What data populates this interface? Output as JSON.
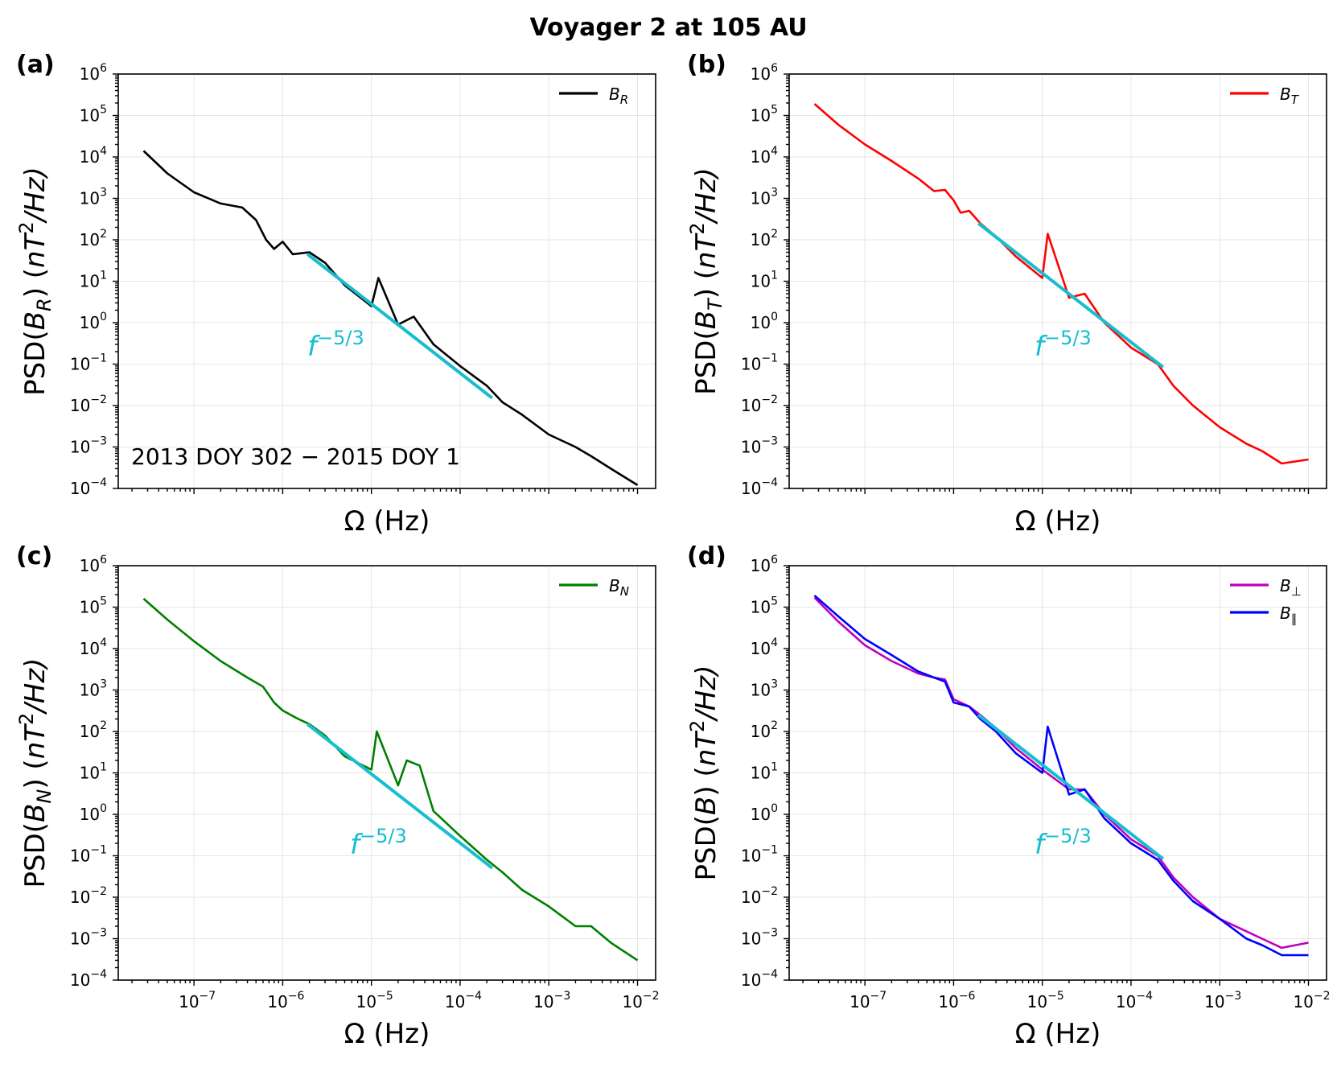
{
  "figure": {
    "title": "Voyager 2 at 105 AU",
    "colors": {
      "fit": "#17becf",
      "B_R": "#000000",
      "B_T": "#ff0000",
      "B_N": "#007f00",
      "B_perp": "#bf00bf",
      "B_par": "#0000ff"
    }
  },
  "chart_data": [
    {
      "type": "line",
      "panel": "(a)",
      "xlabel": "Ω (Hz)",
      "ylabel": "PSD(B_R) (nT²/Hz)",
      "xscale": "log",
      "yscale": "log",
      "xlim": [
        1.4e-08,
        0.016
      ],
      "ylim": [
        0.0001,
        1000000.0
      ],
      "grid": true,
      "legend_position": "top-right",
      "show_x_ticklabels": false,
      "series": [
        {
          "name": "B_R",
          "color": "#000000",
          "points": [
            [
              2.7e-08,
              14000
            ],
            [
              5e-08,
              4000
            ],
            [
              1e-07,
              1400
            ],
            [
              2e-07,
              750
            ],
            [
              3.5e-07,
              600
            ],
            [
              5e-07,
              300
            ],
            [
              6.5e-07,
              100
            ],
            [
              8e-07,
              60
            ],
            [
              1e-06,
              90
            ],
            [
              1.3e-06,
              45
            ],
            [
              2e-06,
              50
            ],
            [
              3e-06,
              28
            ],
            [
              5e-06,
              8
            ],
            [
              1e-05,
              2.5
            ],
            [
              1.2e-05,
              12
            ],
            [
              2e-05,
              0.9
            ],
            [
              3e-05,
              1.4
            ],
            [
              5e-05,
              0.3
            ],
            [
              0.0001,
              0.09
            ],
            [
              0.0002,
              0.03
            ],
            [
              0.0003,
              0.012
            ],
            [
              0.0005,
              0.006
            ],
            [
              0.001,
              0.002
            ],
            [
              0.002,
              0.001
            ],
            [
              0.003,
              0.0006
            ],
            [
              0.005,
              0.0003
            ],
            [
              0.01,
              0.00012
            ]
          ]
        }
      ],
      "fit": {
        "label": "f^{-5/3}",
        "exponent": -1.6667,
        "x_range": [
          1.9e-06,
          0.00023
        ],
        "y_start": 45
      },
      "annotation": "2013 DOY 302 − 2015 DOY 1"
    },
    {
      "type": "line",
      "panel": "(b)",
      "xlabel": "Ω (Hz)",
      "ylabel": "PSD(B_T) (nT²/Hz)",
      "xscale": "log",
      "yscale": "log",
      "xlim": [
        1.4e-08,
        0.016
      ],
      "ylim": [
        0.0001,
        1000000.0
      ],
      "grid": true,
      "legend_position": "top-right",
      "show_x_ticklabels": false,
      "series": [
        {
          "name": "B_T",
          "color": "#ff0000",
          "points": [
            [
              2.7e-08,
              190000
            ],
            [
              5e-08,
              60000
            ],
            [
              1e-07,
              20000
            ],
            [
              2e-07,
              8000
            ],
            [
              4e-07,
              3000
            ],
            [
              6e-07,
              1500
            ],
            [
              8e-07,
              1600
            ],
            [
              1e-06,
              900
            ],
            [
              1.2e-06,
              450
            ],
            [
              1.5e-06,
              500
            ],
            [
              2e-06,
              250
            ],
            [
              3e-06,
              120
            ],
            [
              5e-06,
              40
            ],
            [
              1e-05,
              12
            ],
            [
              1.15e-05,
              140
            ],
            [
              2e-05,
              4
            ],
            [
              3e-05,
              5
            ],
            [
              5e-05,
              1
            ],
            [
              0.0001,
              0.25
            ],
            [
              0.0002,
              0.1
            ],
            [
              0.0003,
              0.03
            ],
            [
              0.0005,
              0.01
            ],
            [
              0.001,
              0.003
            ],
            [
              0.002,
              0.0012
            ],
            [
              0.003,
              0.0008
            ],
            [
              0.005,
              0.0004
            ],
            [
              0.01,
              0.0005
            ]
          ]
        }
      ],
      "fit": {
        "label": "f^{-5/3}",
        "exponent": -1.6667,
        "x_range": [
          1.9e-06,
          0.00023
        ],
        "y_start": 250
      }
    },
    {
      "type": "line",
      "panel": "(c)",
      "xlabel": "Ω (Hz)",
      "ylabel": "PSD(B_N) (nT²/Hz)",
      "xscale": "log",
      "yscale": "log",
      "xlim": [
        1.4e-08,
        0.016
      ],
      "ylim": [
        0.0001,
        1000000.0
      ],
      "grid": true,
      "legend_position": "top-right",
      "show_x_ticklabels": true,
      "series": [
        {
          "name": "B_N",
          "color": "#007f00",
          "points": [
            [
              2.7e-08,
              160000
            ],
            [
              5e-08,
              50000
            ],
            [
              1e-07,
              15000
            ],
            [
              2e-07,
              5000
            ],
            [
              4e-07,
              2000
            ],
            [
              6e-07,
              1200
            ],
            [
              8e-07,
              500
            ],
            [
              1e-06,
              320
            ],
            [
              1.5e-06,
              200
            ],
            [
              2e-06,
              150
            ],
            [
              3e-06,
              80
            ],
            [
              5e-06,
              25
            ],
            [
              1e-05,
              12
            ],
            [
              1.15e-05,
              100
            ],
            [
              2e-05,
              5
            ],
            [
              2.5e-05,
              20
            ],
            [
              3.5e-05,
              15
            ],
            [
              5e-05,
              1.2
            ],
            [
              0.0001,
              0.3
            ],
            [
              0.0002,
              0.08
            ],
            [
              0.0003,
              0.04
            ],
            [
              0.0005,
              0.015
            ],
            [
              0.001,
              0.006
            ],
            [
              0.002,
              0.002
            ],
            [
              0.003,
              0.002
            ],
            [
              0.005,
              0.0008
            ],
            [
              0.01,
              0.0003
            ]
          ]
        }
      ],
      "fit": {
        "label": "f^{-5/3}",
        "exponent": -1.6667,
        "x_range": [
          1.9e-06,
          0.00023
        ],
        "y_start": 150
      }
    },
    {
      "type": "line",
      "panel": "(d)",
      "xlabel": "Ω (Hz)",
      "ylabel": "PSD(B) (nT²/Hz)",
      "xscale": "log",
      "yscale": "log",
      "xlim": [
        1.4e-08,
        0.016
      ],
      "ylim": [
        0.0001,
        1000000.0
      ],
      "grid": true,
      "legend_position": "top-right",
      "show_x_ticklabels": true,
      "series": [
        {
          "name": "B_⊥",
          "color": "#bf00bf",
          "points": [
            [
              2.7e-08,
              170000
            ],
            [
              5e-08,
              45000
            ],
            [
              1e-07,
              12000
            ],
            [
              2e-07,
              5000
            ],
            [
              4e-07,
              2500
            ],
            [
              6e-07,
              2000
            ],
            [
              8e-07,
              1800
            ],
            [
              1e-06,
              600
            ],
            [
              1.5e-06,
              400
            ],
            [
              2e-06,
              250
            ],
            [
              3e-06,
              120
            ],
            [
              5e-06,
              40
            ],
            [
              1e-05,
              12
            ],
            [
              2e-05,
              4
            ],
            [
              3e-05,
              4
            ],
            [
              5e-05,
              1
            ],
            [
              0.0001,
              0.25
            ],
            [
              0.0002,
              0.1
            ],
            [
              0.0003,
              0.03
            ],
            [
              0.0005,
              0.01
            ],
            [
              0.001,
              0.003
            ],
            [
              0.002,
              0.0015
            ],
            [
              0.003,
              0.001
            ],
            [
              0.005,
              0.0006
            ],
            [
              0.01,
              0.0008
            ]
          ]
        },
        {
          "name": "B_∥",
          "color": "#0000ff",
          "points": [
            [
              2.7e-08,
              190000
            ],
            [
              5e-08,
              60000
            ],
            [
              1e-07,
              17000
            ],
            [
              2e-07,
              7000
            ],
            [
              4e-07,
              2800
            ],
            [
              6e-07,
              2000
            ],
            [
              8e-07,
              1600
            ],
            [
              1e-06,
              500
            ],
            [
              1.5e-06,
              400
            ],
            [
              2e-06,
              200
            ],
            [
              3e-06,
              100
            ],
            [
              5e-06,
              30
            ],
            [
              1e-05,
              10
            ],
            [
              1.15e-05,
              130
            ],
            [
              2e-05,
              3
            ],
            [
              3e-05,
              4
            ],
            [
              5e-05,
              0.8
            ],
            [
              0.0001,
              0.2
            ],
            [
              0.0002,
              0.08
            ],
            [
              0.0003,
              0.025
            ],
            [
              0.0005,
              0.008
            ],
            [
              0.001,
              0.003
            ],
            [
              0.002,
              0.001
            ],
            [
              0.003,
              0.0007
            ],
            [
              0.005,
              0.0004
            ],
            [
              0.01,
              0.0004
            ]
          ]
        }
      ],
      "fit": {
        "label": "f^{-5/3}",
        "exponent": -1.6667,
        "x_range": [
          1.9e-06,
          0.00023
        ],
        "y_start": 250
      }
    }
  ]
}
